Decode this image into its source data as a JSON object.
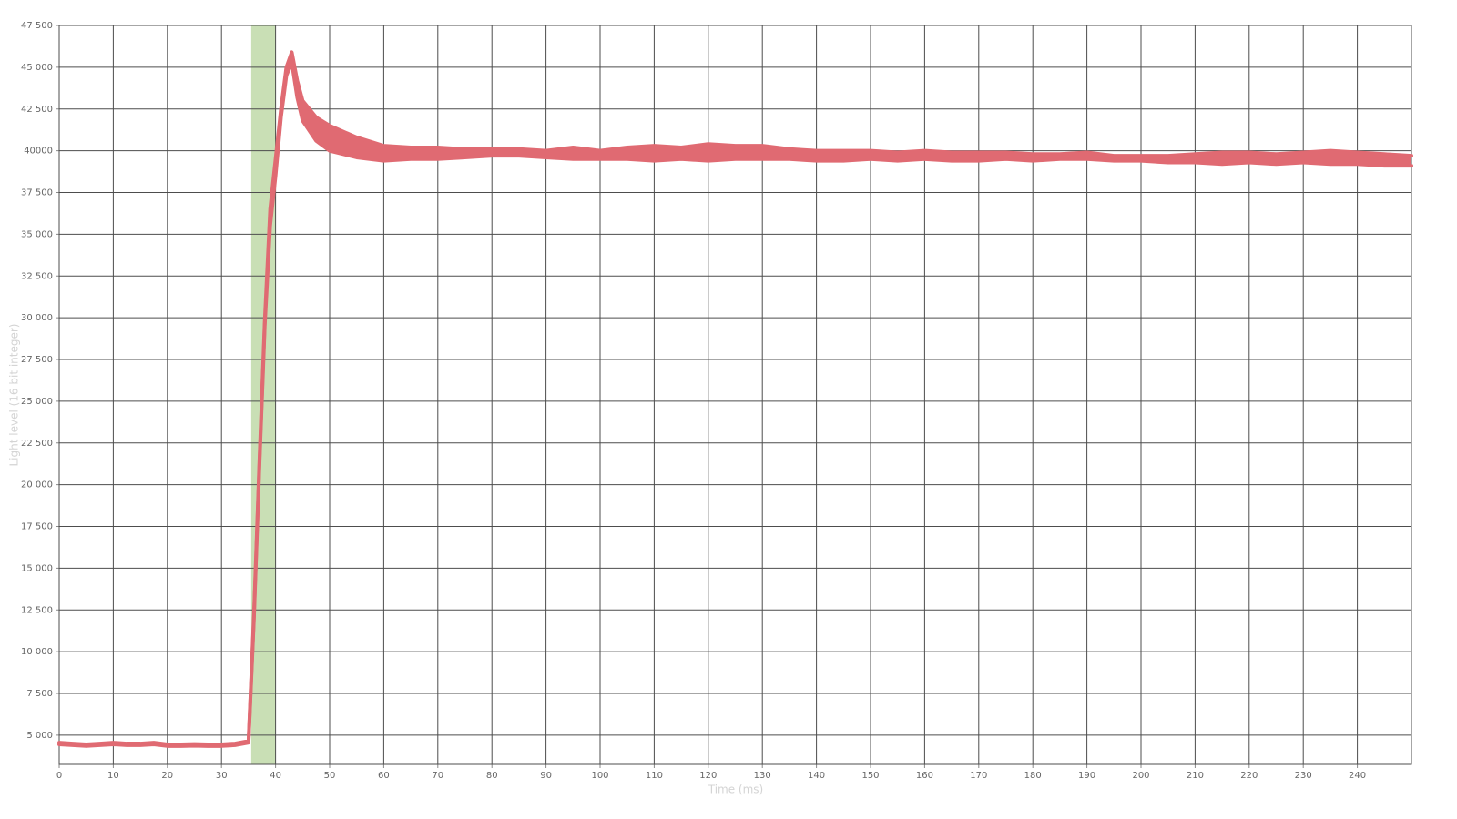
{
  "chart_data": {
    "type": "range-area",
    "x_label": "Time (ms)",
    "y_label": "Light level (16 bit integer)",
    "xlim": [
      0,
      250
    ],
    "xticks": [
      0,
      10,
      20,
      30,
      40,
      50,
      60,
      70,
      80,
      90,
      100,
      110,
      120,
      130,
      140,
      150,
      160,
      170,
      180,
      190,
      200,
      210,
      220,
      230,
      240
    ],
    "ylim": [
      3250,
      47500
    ],
    "yticks": [
      {
        "value": 5000,
        "label": "5 000"
      },
      {
        "value": 7500,
        "label": "7 500"
      },
      {
        "value": 10000,
        "label": "10 000"
      },
      {
        "value": 12500,
        "label": "12 500"
      },
      {
        "value": 15000,
        "label": "15 000"
      },
      {
        "value": 17500,
        "label": "17 500"
      },
      {
        "value": 20000,
        "label": "20 000"
      },
      {
        "value": 22500,
        "label": "22 500"
      },
      {
        "value": 25000,
        "label": "25 000"
      },
      {
        "value": 27500,
        "label": "27 500"
      },
      {
        "value": 30000,
        "label": "30 000"
      },
      {
        "value": 32500,
        "label": "32 500"
      },
      {
        "value": 35000,
        "label": "35 000"
      },
      {
        "value": 37500,
        "label": "37 500"
      },
      {
        "value": 40000,
        "label": "40000"
      },
      {
        "value": 42500,
        "label": "42 500"
      },
      {
        "value": 45000,
        "label": "45 000"
      },
      {
        "value": 47500,
        "label": "47 500"
      }
    ],
    "grid": true,
    "highlight": {
      "xrange": [
        35.5,
        40
      ],
      "color": "#c9dfb5"
    },
    "color": "#e06a72",
    "x": [
      0,
      2.5,
      5,
      7.5,
      10,
      12.5,
      15,
      17.5,
      20,
      22.5,
      25,
      27.5,
      30,
      32.5,
      35,
      36,
      37,
      38,
      39,
      40,
      41,
      42,
      43,
      44,
      45,
      47.5,
      50,
      55,
      60,
      65,
      70,
      75,
      80,
      85,
      90,
      95,
      100,
      105,
      110,
      115,
      120,
      125,
      130,
      135,
      140,
      145,
      150,
      155,
      160,
      165,
      170,
      175,
      180,
      185,
      190,
      195,
      200,
      205,
      210,
      215,
      220,
      225,
      230,
      235,
      240,
      245,
      250
    ],
    "series": [
      {
        "values": [
          4450,
          4400,
          4350,
          4400,
          4450,
          4400,
          4400,
          4450,
          4350,
          4350,
          4370,
          4350,
          4350,
          4400,
          4550,
          12000,
          21000,
          29500,
          35500,
          38500,
          42000,
          44500,
          45300,
          43200,
          41800,
          40600,
          40000,
          39600,
          39400,
          39500,
          39500,
          39600,
          39700,
          39700,
          39600,
          39500,
          39500,
          39500,
          39400,
          39500,
          39400,
          39500,
          39500,
          39500,
          39400,
          39400,
          39500,
          39400,
          39500,
          39400,
          39400,
          39500,
          39400,
          39500,
          39500,
          39400,
          39400,
          39300,
          39300,
          39200,
          39300,
          39200,
          39300,
          39200,
          39200,
          39100,
          39100
        ]
      },
      {
        "values": [
          4550,
          4500,
          4450,
          4500,
          4550,
          4500,
          4500,
          4550,
          4450,
          4450,
          4470,
          4450,
          4450,
          4500,
          4650,
          12200,
          21300,
          29800,
          36500,
          39500,
          42500,
          45000,
          45900,
          44200,
          43000,
          42000,
          41500,
          40800,
          40300,
          40200,
          40200,
          40100,
          40100,
          40100,
          40000,
          40200,
          40000,
          40200,
          40300,
          40200,
          40400,
          40300,
          40300,
          40100,
          40000,
          40000,
          40000,
          39900,
          40000,
          39900,
          39900,
          39900,
          39800,
          39800,
          39900,
          39700,
          39700,
          39700,
          39800,
          39900,
          39900,
          39800,
          39900,
          40000,
          39900,
          39800,
          39700
        ]
      }
    ]
  }
}
